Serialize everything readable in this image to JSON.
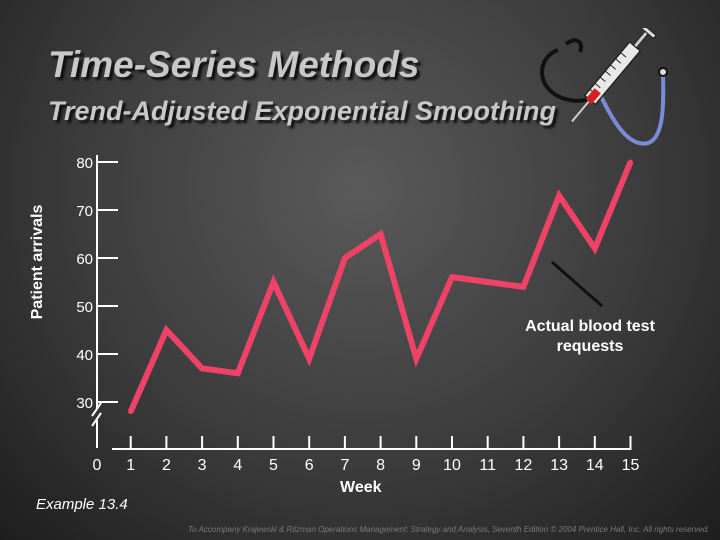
{
  "slide": {
    "title": "Time-Series Methods",
    "subtitle": "Trend-Adjusted Exponential Smoothing",
    "example": "Example 13.4",
    "footer": "To Accompany Krajewski & Ritzman Operations Management: Strategy and Analysis, Seventh Edition © 2004 Prentice Hall, Inc. All rights reserved."
  },
  "icons": {
    "decoration": "stethoscope-syringe-icon"
  },
  "colors": {
    "series": "#ee4266",
    "background": "#3c3c3c",
    "text": "#ffffff",
    "title": "#c8c8c8"
  },
  "chart_data": {
    "type": "line",
    "xlabel": "Week",
    "ylabel": "Patient arrivals",
    "x": [
      1,
      2,
      3,
      4,
      5,
      6,
      7,
      8,
      9,
      10,
      11,
      12,
      13,
      14,
      15
    ],
    "x_ticks": [
      0,
      1,
      2,
      3,
      4,
      5,
      6,
      7,
      8,
      9,
      10,
      11,
      12,
      13,
      14,
      15
    ],
    "y_ticks": [
      30,
      40,
      50,
      60,
      70,
      80
    ],
    "ylim": [
      30,
      80
    ],
    "axis_break": true,
    "grid": false,
    "series": [
      {
        "name": "Actual blood test requests",
        "values": [
          28,
          45,
          37,
          36,
          55,
          39,
          60,
          65,
          39,
          56,
          55,
          54,
          73,
          62,
          80
        ]
      }
    ],
    "annotation": {
      "text": "Actual blood\ntest requests",
      "points_to_x": 12.5
    }
  }
}
